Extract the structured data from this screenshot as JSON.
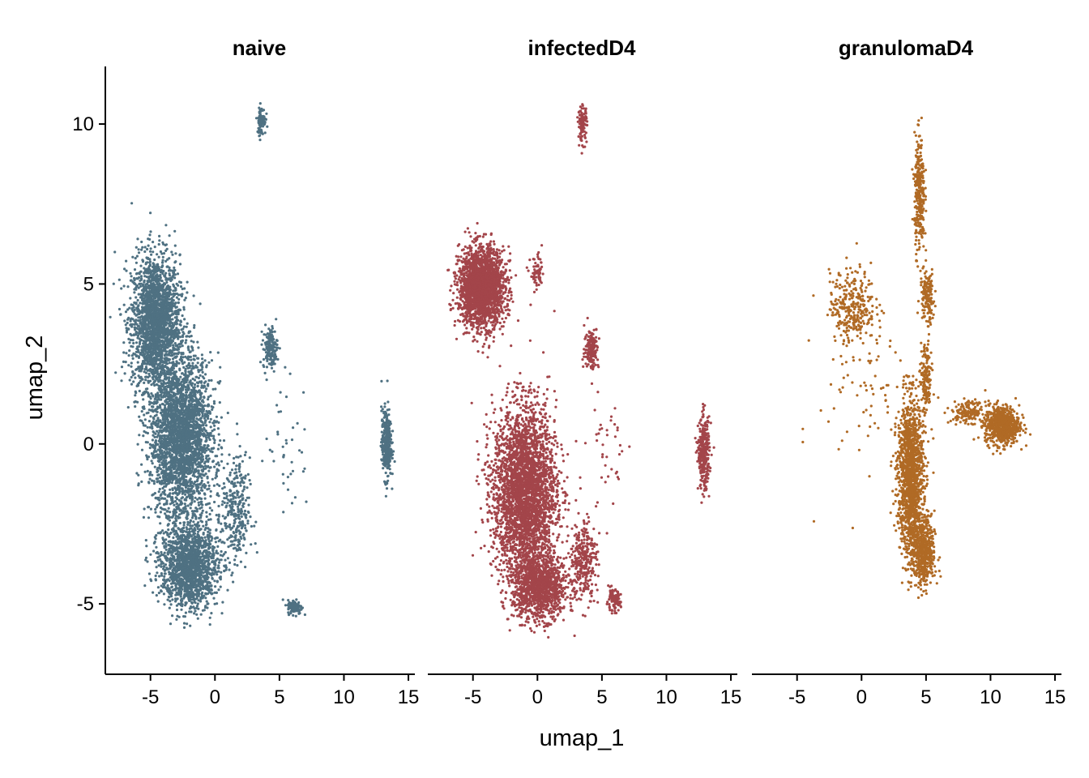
{
  "chart_data": {
    "type": "scatter",
    "xlabel": "umap_1",
    "ylabel": "umap_2",
    "xlim": [
      -8.5,
      15.5
    ],
    "ylim": [
      -7.2,
      11.8
    ],
    "x_ticks": [
      -5,
      0,
      5,
      10,
      15
    ],
    "x_tick_labels": [
      "-5",
      "0",
      "5",
      "10",
      "15"
    ],
    "y_ticks": [
      -5,
      0,
      5,
      10
    ],
    "y_tick_labels": [
      "-5",
      "0",
      "5",
      "10"
    ],
    "grid": false,
    "legend": "none",
    "panels": [
      {
        "title": "naive",
        "color": "#4f7182",
        "clusters": [
          {
            "center": [
              -4.6,
              3.8
            ],
            "spread": [
              1.7,
              1.9
            ],
            "n": 2200
          },
          {
            "center": [
              -2.6,
              0.2
            ],
            "spread": [
              2.2,
              2.3
            ],
            "n": 2800
          },
          {
            "center": [
              -2.0,
              -3.8
            ],
            "spread": [
              2.0,
              1.2
            ],
            "n": 1600
          },
          {
            "center": [
              1.6,
              -2.2
            ],
            "spread": [
              1.0,
              1.6
            ],
            "n": 300
          },
          {
            "center": [
              6.2,
              -5.1
            ],
            "spread": [
              0.5,
              0.2
            ],
            "n": 140
          },
          {
            "center": [
              3.6,
              10.1
            ],
            "spread": [
              0.3,
              0.4
            ],
            "n": 90
          },
          {
            "center": [
              4.3,
              3.0
            ],
            "spread": [
              0.5,
              0.6
            ],
            "n": 160
          },
          {
            "center": [
              13.3,
              0.0
            ],
            "spread": [
              0.35,
              1.0
            ],
            "n": 320
          },
          {
            "center": [
              5.6,
              0.0
            ],
            "spread": [
              1.6,
              2.0
            ],
            "n": 40
          }
        ]
      },
      {
        "title": "infectedD4",
        "color": "#a3454a",
        "clusters": [
          {
            "center": [
              -4.3,
              4.9
            ],
            "spread": [
              1.6,
              1.1
            ],
            "n": 2200
          },
          {
            "center": [
              -1.0,
              -1.5
            ],
            "spread": [
              2.2,
              2.4
            ],
            "n": 3200
          },
          {
            "center": [
              0.2,
              -4.5
            ],
            "spread": [
              1.9,
              0.9
            ],
            "n": 1200
          },
          {
            "center": [
              3.6,
              -3.6
            ],
            "spread": [
              0.9,
              1.1
            ],
            "n": 300
          },
          {
            "center": [
              5.9,
              -4.9
            ],
            "spread": [
              0.5,
              0.3
            ],
            "n": 100
          },
          {
            "center": [
              3.5,
              10.0
            ],
            "spread": [
              0.3,
              0.5
            ],
            "n": 120
          },
          {
            "center": [
              4.2,
              3.0
            ],
            "spread": [
              0.5,
              0.6
            ],
            "n": 160
          },
          {
            "center": [
              12.9,
              -0.3
            ],
            "spread": [
              0.4,
              1.0
            ],
            "n": 320
          },
          {
            "center": [
              0.0,
              5.3
            ],
            "spread": [
              0.5,
              0.5
            ],
            "n": 60
          },
          {
            "center": [
              5.5,
              -0.3
            ],
            "spread": [
              1.4,
              2.0
            ],
            "n": 40
          }
        ]
      },
      {
        "title": "granulomaD4",
        "color": "#b06a25",
        "clusters": [
          {
            "center": [
              3.8,
              -1.0
            ],
            "spread": [
              0.9,
              2.2
            ],
            "n": 1400
          },
          {
            "center": [
              4.8,
              -3.4
            ],
            "spread": [
              0.8,
              1.0
            ],
            "n": 500
          },
          {
            "center": [
              10.9,
              0.6
            ],
            "spread": [
              1.2,
              0.55
            ],
            "n": 700
          },
          {
            "center": [
              -0.7,
              4.3
            ],
            "spread": [
              1.6,
              1.0
            ],
            "n": 300
          },
          {
            "center": [
              4.5,
              7.8
            ],
            "spread": [
              0.35,
              1.6
            ],
            "n": 300
          },
          {
            "center": [
              5.1,
              4.6
            ],
            "spread": [
              0.5,
              0.8
            ],
            "n": 150
          },
          {
            "center": [
              8.3,
              1.0
            ],
            "spread": [
              1.2,
              0.3
            ],
            "n": 150
          },
          {
            "center": [
              5.0,
              2.0
            ],
            "spread": [
              0.4,
              1.1
            ],
            "n": 150
          },
          {
            "center": [
              0.0,
              2.0
            ],
            "spread": [
              3.0,
              3.0
            ],
            "n": 80
          }
        ]
      }
    ]
  }
}
